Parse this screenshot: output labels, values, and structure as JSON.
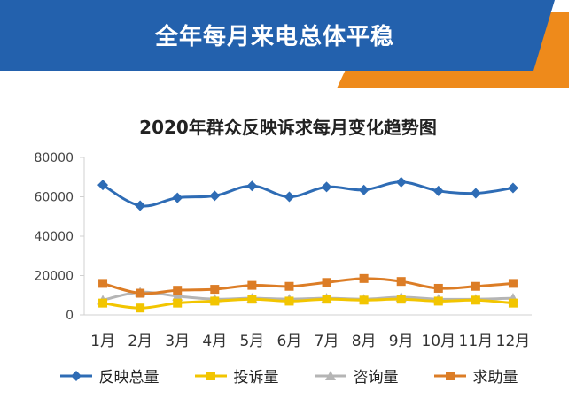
{
  "banner": {
    "title": "全年每月来电总体平稳"
  },
  "colors": {
    "banner_blue": "#2361ad",
    "banner_orange": "#ee8a1b",
    "series_total": "#2e6cb5",
    "series_complaint": "#f2c500",
    "series_consult": "#b5b5b5",
    "series_help": "#dc7d26"
  },
  "chart_data": {
    "type": "line",
    "title": "2020年群众反映诉求每月变化趋势图",
    "xlabel": "",
    "ylabel": "",
    "categories": [
      "1月",
      "2月",
      "3月",
      "4月",
      "5月",
      "6月",
      "7月",
      "8月",
      "9月",
      "10月",
      "11月",
      "12月"
    ],
    "ylim": [
      0,
      80000
    ],
    "yticks": [
      0,
      20000,
      40000,
      60000,
      80000
    ],
    "grid": false,
    "legend": "bottom",
    "series": [
      {
        "name": "反映总量",
        "color": "#2e6cb5",
        "marker": "diamond",
        "values": [
          66000,
          55500,
          59500,
          60500,
          65500,
          60000,
          65000,
          63500,
          67500,
          63000,
          61800,
          64500
        ]
      },
      {
        "name": "投诉量",
        "color": "#f2c500",
        "marker": "square",
        "values": [
          6000,
          3500,
          6000,
          7000,
          8000,
          7000,
          8000,
          7500,
          8000,
          7000,
          7500,
          6000
        ]
      },
      {
        "name": "咨询量",
        "color": "#b5b5b5",
        "marker": "triangle",
        "values": [
          7500,
          11500,
          9500,
          8000,
          8500,
          8000,
          8500,
          8000,
          9000,
          8000,
          8000,
          8500
        ]
      },
      {
        "name": "求助量",
        "color": "#dc7d26",
        "marker": "square",
        "values": [
          16000,
          11000,
          12500,
          13000,
          15000,
          14500,
          16500,
          18500,
          17000,
          13500,
          14500,
          16000
        ]
      }
    ]
  }
}
